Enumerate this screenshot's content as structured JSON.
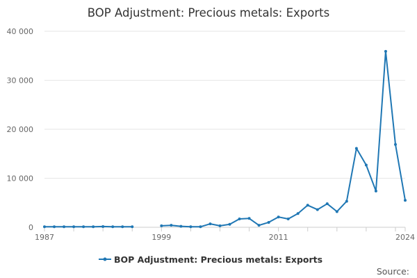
{
  "chart_data": {
    "type": "line",
    "title": "BOP Adjustment: Precious metals: Exports",
    "xlabel": "",
    "ylabel": "",
    "xlim": [
      1987,
      2024
    ],
    "ylim": [
      0,
      40000
    ],
    "yticks": [
      0,
      10000,
      20000,
      30000,
      40000
    ],
    "ytick_labels": [
      "0",
      "10 000",
      "20 000",
      "30 000",
      "40 000"
    ],
    "xtick_labels": [
      "1987",
      "1999",
      "2011",
      "2024"
    ],
    "xtick_values": [
      1987,
      1999,
      2011,
      2024
    ],
    "grid": true,
    "legend_position": "bottom",
    "series": [
      {
        "name": "BOP Adjustment: Precious metals: Exports",
        "color": "#1f77b4",
        "x": [
          1987,
          1988,
          1989,
          1990,
          1991,
          1992,
          1993,
          1994,
          1995,
          1996,
          1999,
          2000,
          2001,
          2002,
          2003,
          2004,
          2005,
          2006,
          2007,
          2008,
          2009,
          2010,
          2011,
          2012,
          2013,
          2014,
          2015,
          2016,
          2017,
          2018,
          2019,
          2020,
          2021,
          2022,
          2023,
          2024
        ],
        "y": [
          100,
          100,
          100,
          100,
          100,
          100,
          150,
          100,
          100,
          100,
          300,
          400,
          200,
          100,
          100,
          700,
          300,
          600,
          1700,
          1800,
          400,
          1000,
          2100,
          1700,
          2800,
          4500,
          3600,
          4800,
          3200,
          5300,
          16100,
          12700,
          7400,
          35900,
          16900,
          5500
        ]
      }
    ]
  },
  "source_label": "Source:"
}
